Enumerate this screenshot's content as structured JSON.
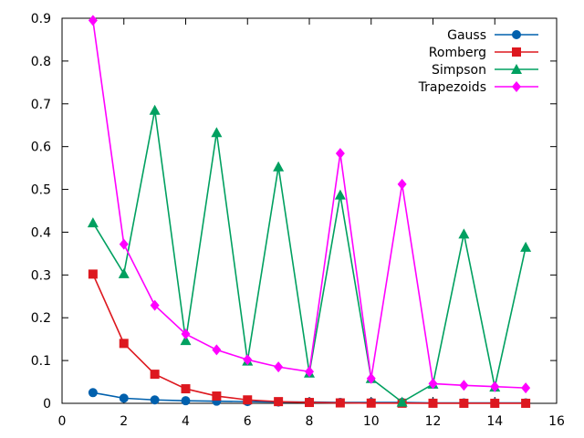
{
  "chart_data": {
    "type": "line",
    "title": "",
    "xlabel": "",
    "ylabel": "",
    "xlim": [
      0,
      16
    ],
    "ylim": [
      0,
      0.9
    ],
    "x_ticks": [
      "0",
      "2",
      "4",
      "6",
      "8",
      "10",
      "12",
      "14",
      "16"
    ],
    "y_ticks": [
      "0",
      "0.1",
      "0.2",
      "0.3",
      "0.4",
      "0.5",
      "0.6",
      "0.7",
      "0.8",
      "0.9"
    ],
    "x_tick_values": [
      0,
      2,
      4,
      6,
      8,
      10,
      12,
      14,
      16
    ],
    "y_tick_values": [
      0,
      0.1,
      0.2,
      0.3,
      0.4,
      0.5,
      0.6,
      0.7,
      0.8,
      0.9
    ],
    "grid": false,
    "legend_position": "top-right",
    "x": [
      1,
      2,
      3,
      4,
      5,
      6,
      7,
      8,
      9,
      10,
      11,
      12,
      13,
      14,
      15
    ],
    "series": [
      {
        "name": "Gauss",
        "color": "#0060ad",
        "marker": "circle",
        "values": [
          0.025,
          0.012,
          0.008,
          0.006,
          0.005,
          0.004,
          0.003,
          0.003,
          0.002,
          0.002,
          0.002,
          0.001,
          0.001,
          0.001,
          0.001
        ]
      },
      {
        "name": "Romberg",
        "color": "#dd181f",
        "marker": "square",
        "values": [
          0.302,
          0.14,
          0.068,
          0.034,
          0.017,
          0.008,
          0.004,
          0.002,
          0.001,
          0.0005,
          0.0003,
          0.0002,
          0.0001,
          0.0001,
          0.0001
        ]
      },
      {
        "name": "Simpson",
        "color": "#00a060",
        "marker": "triangle",
        "values": [
          0.422,
          0.303,
          0.685,
          0.147,
          0.633,
          0.099,
          0.553,
          0.071,
          0.487,
          0.058,
          0.003,
          0.045,
          0.396,
          0.038,
          0.365
        ]
      },
      {
        "name": "Trapezoids",
        "color": "#ff00ff",
        "marker": "diamond",
        "values": [
          0.895,
          0.372,
          0.229,
          0.162,
          0.125,
          0.102,
          0.085,
          0.074,
          0.584,
          0.058,
          0.512,
          0.046,
          0.042,
          0.039,
          0.036
        ]
      }
    ]
  }
}
